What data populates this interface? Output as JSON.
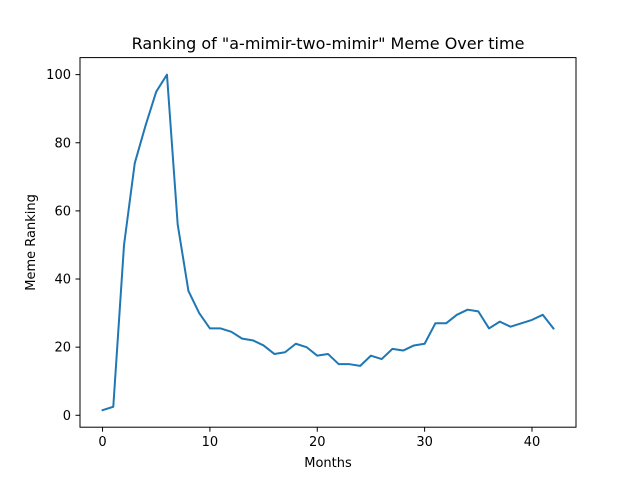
{
  "chart_data": {
    "type": "line",
    "title": "Ranking of \"a-mimir-two-mimir\" Meme Over time",
    "xlabel": "Months",
    "ylabel": "Meme Ranking",
    "xlim": [
      -2.1,
      44.1
    ],
    "ylim": [
      -3.5,
      105
    ],
    "xticks": [
      0,
      10,
      20,
      30,
      40
    ],
    "yticks": [
      0,
      20,
      40,
      60,
      80,
      100
    ],
    "grid": false,
    "legend": "none",
    "series": [
      {
        "color": "#1f77b4",
        "x": [
          0,
          1,
          2,
          3,
          4,
          5,
          6,
          7,
          8,
          9,
          10,
          11,
          12,
          13,
          14,
          15,
          16,
          17,
          18,
          19,
          20,
          21,
          22,
          23,
          24,
          25,
          26,
          27,
          28,
          29,
          30,
          31,
          32,
          33,
          34,
          35,
          36,
          37,
          38,
          39,
          40,
          41,
          42
        ],
        "values": [
          1.5,
          2.5,
          50,
          74,
          85,
          95,
          100,
          56,
          36.5,
          30,
          25.5,
          25.5,
          24.5,
          22.5,
          22,
          20.5,
          18,
          18.5,
          21,
          20,
          17.5,
          18,
          15,
          15,
          14.5,
          17.5,
          16.5,
          19.5,
          19,
          20.5,
          21,
          27,
          27,
          29.5,
          31,
          30.5,
          25.5,
          27.5,
          26,
          27,
          28,
          29.5,
          25.5
        ]
      }
    ]
  }
}
